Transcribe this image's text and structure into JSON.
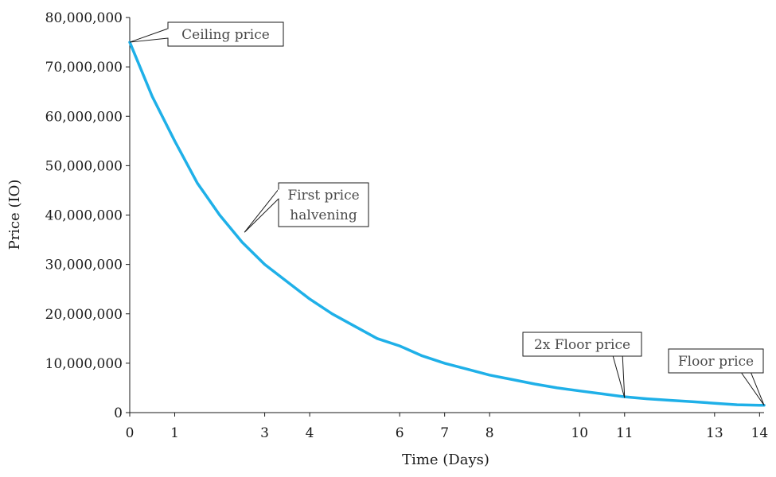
{
  "chart_data": {
    "type": "line",
    "title": "",
    "xlabel": "Time (Days)",
    "ylabel": "Price (IO)",
    "xlim": [
      0,
      14.1
    ],
    "ylim": [
      0,
      80000000
    ],
    "x_ticks": [
      0,
      1,
      3,
      4,
      6,
      7,
      8,
      10,
      11,
      13,
      14
    ],
    "x_tick_labels": [
      "0",
      "1",
      "3",
      "4",
      "6",
      "7",
      "8",
      "10",
      "11",
      "13",
      "14"
    ],
    "y_ticks": [
      0,
      10000000,
      20000000,
      30000000,
      40000000,
      50000000,
      60000000,
      70000000,
      80000000
    ],
    "y_tick_labels": [
      "0",
      "10,000,000",
      "20,000,000",
      "30,000,000",
      "40,000,000",
      "50,000,000",
      "60,000,000",
      "70,000,000",
      "80,000,000"
    ],
    "grid": false,
    "legend": "none",
    "series": [
      {
        "color": "#1fb0e8",
        "x": [
          0,
          0.5,
          1,
          1.5,
          2,
          2.5,
          3,
          3.5,
          4,
          4.5,
          5,
          5.5,
          6,
          6.5,
          7,
          7.5,
          8,
          8.5,
          9,
          9.5,
          10,
          10.5,
          11,
          11.5,
          12,
          12.5,
          13,
          13.5,
          14,
          14.1
        ],
        "y": [
          75000000,
          64000000,
          55000000,
          46500000,
          40000000,
          34500000,
          30000000,
          26500000,
          23000000,
          20000000,
          17500000,
          15000000,
          13500000,
          11500000,
          10000000,
          8800000,
          7600000,
          6700000,
          5800000,
          5000000,
          4400000,
          3800000,
          3200000,
          2800000,
          2500000,
          2200000,
          1900000,
          1600000,
          1500000,
          1500000
        ]
      }
    ],
    "annotations": [
      {
        "text": [
          "Ceiling price"
        ],
        "x": 0,
        "y": 75000000
      },
      {
        "text": [
          "First price",
          "halvening"
        ],
        "x": 2.55,
        "y": 36500000
      },
      {
        "text": [
          "2x Floor price"
        ],
        "x": 11.0,
        "y": 3000000
      },
      {
        "text": [
          "Floor price"
        ],
        "x": 14.1,
        "y": 1500000
      }
    ]
  }
}
